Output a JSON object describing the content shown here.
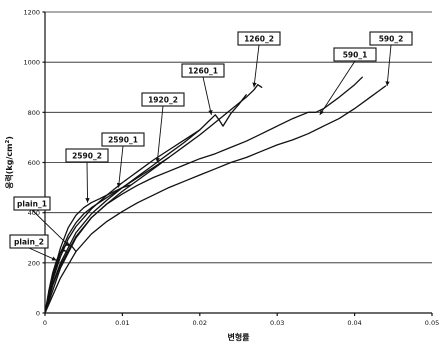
{
  "chart_data": {
    "type": "line",
    "title": "",
    "xlabel": "변형률",
    "ylabel": "응력(kg/cm",
    "ylabel_superscript": "2",
    "ylabel_close": ")",
    "xlim": [
      0,
      0.05
    ],
    "ylim": [
      0,
      1200
    ],
    "xticks": [
      "0",
      "0.01",
      "0.02",
      "0.03",
      "0.04",
      "0.05"
    ],
    "yticks": [
      "0",
      "200",
      "400",
      "600",
      "800",
      "1000",
      "1200"
    ],
    "grid": "horizontal",
    "series": [
      {
        "name": "plain_2",
        "x": [
          0,
          0.0005,
          0.001,
          0.0015,
          0.002,
          0.0025,
          0.003
        ],
        "y": [
          0,
          90,
          160,
          210,
          240,
          250,
          240
        ]
      },
      {
        "name": "plain_1",
        "x": [
          0,
          0.0005,
          0.001,
          0.0015,
          0.002,
          0.0025,
          0.003,
          0.0035,
          0.004
        ],
        "y": [
          0,
          80,
          150,
          205,
          240,
          265,
          275,
          265,
          245
        ]
      },
      {
        "name": "2590_2",
        "x": [
          0,
          0.001,
          0.002,
          0.003,
          0.004,
          0.005,
          0.006,
          0.007,
          0.008,
          0.009,
          0.01,
          0.011
        ],
        "y": [
          0,
          150,
          260,
          340,
          390,
          420,
          440,
          455,
          470,
          485,
          500,
          510
        ]
      },
      {
        "name": "2590_1",
        "x": [
          0,
          0.001,
          0.002,
          0.003,
          0.004,
          0.005,
          0.006,
          0.007,
          0.008,
          0.009,
          0.01,
          0.012,
          0.014,
          0.016
        ],
        "y": [
          0,
          140,
          240,
          310,
          360,
          395,
          420,
          440,
          460,
          480,
          500,
          540,
          580,
          620
        ]
      },
      {
        "name": "1920_2",
        "x": [
          0,
          0.001,
          0.002,
          0.003,
          0.004,
          0.006,
          0.008,
          0.01,
          0.012,
          0.014,
          0.016,
          0.018,
          0.02
        ],
        "y": [
          0,
          130,
          225,
          295,
          345,
          415,
          470,
          520,
          565,
          610,
          650,
          690,
          730
        ]
      },
      {
        "name": "1260_1",
        "x": [
          0,
          0.001,
          0.002,
          0.004,
          0.006,
          0.008,
          0.01,
          0.012,
          0.014,
          0.016,
          0.018,
          0.02,
          0.021,
          0.022,
          0.0225,
          0.023,
          0.024,
          0.025,
          0.026
        ],
        "y": [
          0,
          115,
          200,
          320,
          395,
          450,
          500,
          545,
          590,
          635,
          680,
          730,
          760,
          790,
          770,
          745,
          795,
          830,
          870
        ]
      },
      {
        "name": "1260_2",
        "x": [
          0,
          0.001,
          0.002,
          0.004,
          0.006,
          0.008,
          0.01,
          0.012,
          0.014,
          0.016,
          0.018,
          0.02,
          0.022,
          0.024,
          0.026,
          0.027,
          0.0275,
          0.028
        ],
        "y": [
          0,
          110,
          190,
          305,
          380,
          435,
          485,
          530,
          575,
          620,
          665,
          710,
          760,
          810,
          860,
          890,
          910,
          900
        ]
      },
      {
        "name": "590_1",
        "x": [
          0,
          0.002,
          0.004,
          0.006,
          0.008,
          0.01,
          0.012,
          0.014,
          0.016,
          0.018,
          0.02,
          0.022,
          0.024,
          0.026,
          0.028,
          0.03,
          0.032,
          0.034,
          0.035,
          0.036,
          0.038,
          0.04,
          0.041
        ],
        "y": [
          0,
          180,
          300,
          380,
          435,
          475,
          510,
          540,
          565,
          590,
          615,
          635,
          660,
          685,
          715,
          745,
          775,
          800,
          800,
          815,
          860,
          910,
          940
        ]
      },
      {
        "name": "590_2",
        "x": [
          0,
          0.002,
          0.004,
          0.006,
          0.008,
          0.01,
          0.012,
          0.014,
          0.016,
          0.018,
          0.02,
          0.022,
          0.024,
          0.026,
          0.028,
          0.03,
          0.032,
          0.034,
          0.036,
          0.038,
          0.04,
          0.042,
          0.044
        ],
        "y": [
          0,
          140,
          245,
          315,
          365,
          405,
          440,
          470,
          500,
          525,
          550,
          575,
          600,
          620,
          645,
          670,
          690,
          715,
          745,
          775,
          815,
          860,
          905
        ]
      }
    ]
  }
}
